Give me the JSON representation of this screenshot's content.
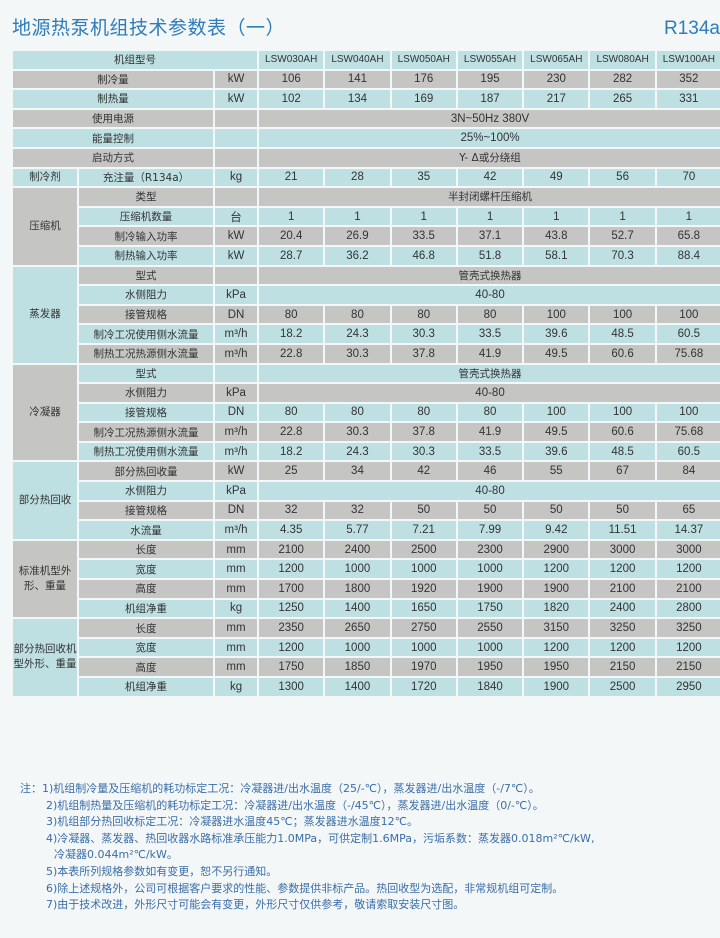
{
  "title": "地源热泵机组技术参数表（一）",
  "refrigerant_tag": "R134a",
  "colors": {
    "row_blue": "#bfe0e3",
    "row_gray": "#c5c6c3",
    "title": "#2f7cb8",
    "notes": "#3b6ea8"
  },
  "table": {
    "header_label": "机组型号",
    "models": [
      "LSW030AH",
      "LSW040AH",
      "LSW050AH",
      "LSW055AH",
      "LSW065AH",
      "LSW080AH",
      "LSW100AH"
    ],
    "rows": [
      {
        "label": "制冷量",
        "unit": "kW",
        "values": [
          "106",
          "141",
          "176",
          "195",
          "230",
          "282",
          "352"
        ]
      },
      {
        "label": "制热量",
        "unit": "kW",
        "values": [
          "102",
          "134",
          "169",
          "187",
          "217",
          "265",
          "331"
        ]
      },
      {
        "label": "使用电源",
        "unit": "",
        "span": "3N~50Hz  380V"
      },
      {
        "label": "能量控制",
        "unit": "",
        "span": "25%~100%"
      },
      {
        "label": "启动方式",
        "unit": "",
        "span": "Y- Δ或分绕组"
      },
      {
        "group": "制冷剂",
        "group_rows": 1,
        "label": "充注量（R134a）",
        "unit": "kg",
        "values": [
          "21",
          "28",
          "35",
          "42",
          "49",
          "56",
          "70"
        ]
      },
      {
        "group": "压缩机",
        "group_rows": 4,
        "label": "类型",
        "unit": "",
        "span": "半封闭螺杆压缩机"
      },
      {
        "label": "压缩机数量",
        "unit": "台",
        "values": [
          "1",
          "1",
          "1",
          "1",
          "1",
          "1",
          "1"
        ]
      },
      {
        "label": "制冷输入功率",
        "unit": "kW",
        "values": [
          "20.4",
          "26.9",
          "33.5",
          "37.1",
          "43.8",
          "52.7",
          "65.8"
        ]
      },
      {
        "label": "制热输入功率",
        "unit": "kW",
        "values": [
          "28.7",
          "36.2",
          "46.8",
          "51.8",
          "58.1",
          "70.3",
          "88.4"
        ]
      },
      {
        "group": "蒸发器",
        "group_rows": 5,
        "label": "型式",
        "unit": "",
        "span": "管壳式换热器"
      },
      {
        "label": "水侧阻力",
        "unit": "kPa",
        "span": "40-80"
      },
      {
        "label": "接管规格",
        "unit": "DN",
        "values": [
          "80",
          "80",
          "80",
          "80",
          "100",
          "100",
          "100"
        ]
      },
      {
        "label": "制冷工况使用侧水流量",
        "unit": "m³/h",
        "values": [
          "18.2",
          "24.3",
          "30.3",
          "33.5",
          "39.6",
          "48.5",
          "60.5"
        ]
      },
      {
        "label": "制热工况热源侧水流量",
        "unit": "m³/h",
        "values": [
          "22.8",
          "30.3",
          "37.8",
          "41.9",
          "49.5",
          "60.6",
          "75.68"
        ]
      },
      {
        "group": "冷凝器",
        "group_rows": 5,
        "label": "型式",
        "unit": "",
        "span": "管壳式换热器"
      },
      {
        "label": "水侧阻力",
        "unit": "kPa",
        "span": "40-80"
      },
      {
        "label": "接管规格",
        "unit": "DN",
        "values": [
          "80",
          "80",
          "80",
          "80",
          "100",
          "100",
          "100"
        ]
      },
      {
        "label": "制冷工况热源侧水流量",
        "unit": "m³/h",
        "values": [
          "22.8",
          "30.3",
          "37.8",
          "41.9",
          "49.5",
          "60.6",
          "75.68"
        ]
      },
      {
        "label": "制热工况使用侧水流量",
        "unit": "m³/h",
        "values": [
          "18.2",
          "24.3",
          "30.3",
          "33.5",
          "39.6",
          "48.5",
          "60.5"
        ]
      },
      {
        "group": "部分热回收",
        "group_rows": 4,
        "label": "部分热回收量",
        "unit": "kW",
        "values": [
          "25",
          "34",
          "42",
          "46",
          "55",
          "67",
          "84"
        ]
      },
      {
        "label": "水侧阻力",
        "unit": "kPa",
        "span": "40-80"
      },
      {
        "label": "接管规格",
        "unit": "DN",
        "values": [
          "32",
          "32",
          "50",
          "50",
          "50",
          "50",
          "65"
        ]
      },
      {
        "label": "水流量",
        "unit": "m³/h",
        "values": [
          "4.35",
          "5.77",
          "7.21",
          "7.99",
          "9.42",
          "11.51",
          "14.37"
        ]
      },
      {
        "group": "标准机型外形、重量",
        "group_rows": 4,
        "label": "长度",
        "unit": "mm",
        "values": [
          "2100",
          "2400",
          "2500",
          "2300",
          "2900",
          "3000",
          "3000"
        ]
      },
      {
        "label": "宽度",
        "unit": "mm",
        "values": [
          "1200",
          "1000",
          "1000",
          "1000",
          "1200",
          "1200",
          "1200"
        ]
      },
      {
        "label": "高度",
        "unit": "mm",
        "values": [
          "1700",
          "1800",
          "1920",
          "1900",
          "1900",
          "2100",
          "2100"
        ]
      },
      {
        "label": "机组净重",
        "unit": "kg",
        "values": [
          "1250",
          "1400",
          "1650",
          "1750",
          "1820",
          "2400",
          "2800"
        ]
      },
      {
        "group": "部分热回收机型外形、重量",
        "group_rows": 4,
        "label": "长度",
        "unit": "mm",
        "values": [
          "2350",
          "2650",
          "2750",
          "2550",
          "3150",
          "3250",
          "3250"
        ]
      },
      {
        "label": "宽度",
        "unit": "mm",
        "values": [
          "1200",
          "1000",
          "1000",
          "1000",
          "1200",
          "1200",
          "1200"
        ]
      },
      {
        "label": "高度",
        "unit": "mm",
        "values": [
          "1750",
          "1850",
          "1970",
          "1950",
          "1950",
          "2150",
          "2150"
        ]
      },
      {
        "label": "机组净重",
        "unit": "kg",
        "values": [
          "1300",
          "1400",
          "1720",
          "1840",
          "1900",
          "2500",
          "2950"
        ]
      }
    ]
  },
  "notes": [
    "注：1)机组制冷量及压缩机的耗功标定工况：冷凝器进/出水温度（25/-℃），蒸发器进/出水温度（-/7℃）。",
    "2)机组制热量及压缩机的耗功标定工况：冷凝器进/出水温度（-/45℃），蒸发器进/出水温度（0/-℃）。",
    "3)机组部分热回收标定工况：冷凝器进水温度45℃；蒸发器进水温度12℃。",
    "4)冷凝器、蒸发器、热回收器水路标准承压能力1.0MPa，可供定制1.6MPa，污垢系数：蒸发器0.018m²℃/kW,",
    "冷凝器0.044m²℃/kW。",
    "5)本表所列规格参数如有变更，恕不另行通知。",
    "6)除上述规格外，公司可根据客户要求的性能、参数提供非标产品。热回收型为选配，非常规机组可定制。",
    "7)由于技术改进，外形尺寸可能会有变更，外形尺寸仅供参考，敬请索取安装尺寸图。"
  ]
}
